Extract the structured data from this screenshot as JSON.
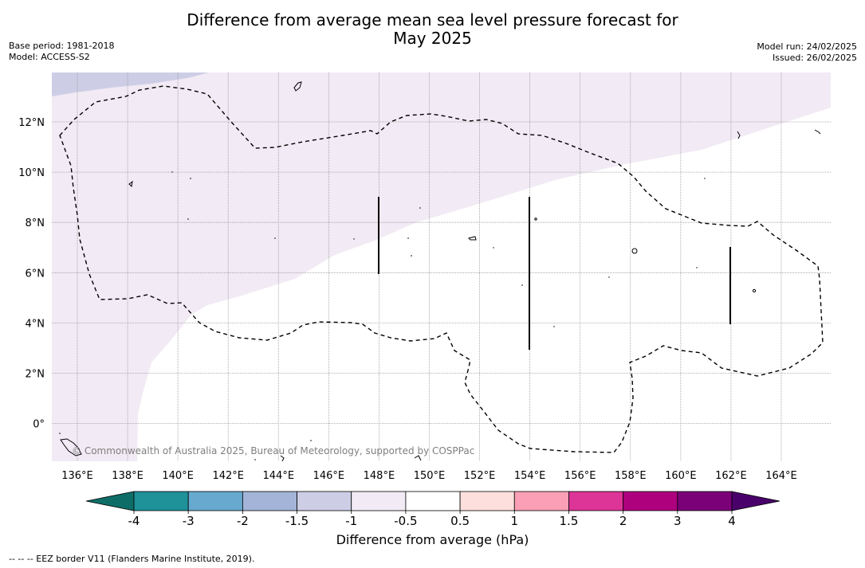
{
  "title": {
    "line1": "Difference from average mean sea level pressure forecast for",
    "line2": "May 2025"
  },
  "meta_left": {
    "base_period": "Base period: 1981-2018",
    "model": "Model: ACCESS-S2"
  },
  "meta_right": {
    "model_run": "Model run: 24/02/2025",
    "issued": "Issued: 26/02/2025"
  },
  "map": {
    "lat_labels": [
      "12°N",
      "10°N",
      "8°N",
      "6°N",
      "4°N",
      "2°N",
      "0°"
    ],
    "lon_labels": [
      "136°E",
      "138°E",
      "140°E",
      "142°E",
      "144°E",
      "146°E",
      "148°E",
      "150°E",
      "152°E",
      "154°E",
      "156°E",
      "158°E",
      "160°E",
      "162°E",
      "164°E"
    ],
    "copyright": "© Commonwealth of Australia 2025, Bureau of Meteorology, supported by COSPPac"
  },
  "colorbar": {
    "ticks": [
      "-4",
      "-3",
      "-2",
      "-1.5",
      "-1",
      "-0.5",
      "0.5",
      "1",
      "1.5",
      "2",
      "3",
      "4"
    ],
    "colors": [
      "#1e9199",
      "#67a9cf",
      "#a3b4d8",
      "#cdcee6",
      "#f2eaf4",
      "#ffffff",
      "#fde0dd",
      "#fa9fb5",
      "#dd3497",
      "#ae017e",
      "#7a0177"
    ],
    "low_extend_color": "#0e6e67",
    "high_extend_color": "#49006a",
    "title": "Difference from average (hPa)"
  },
  "footnote": "-- -- -- EEZ border V11 (Flanders Marine Institute, 2019)."
}
